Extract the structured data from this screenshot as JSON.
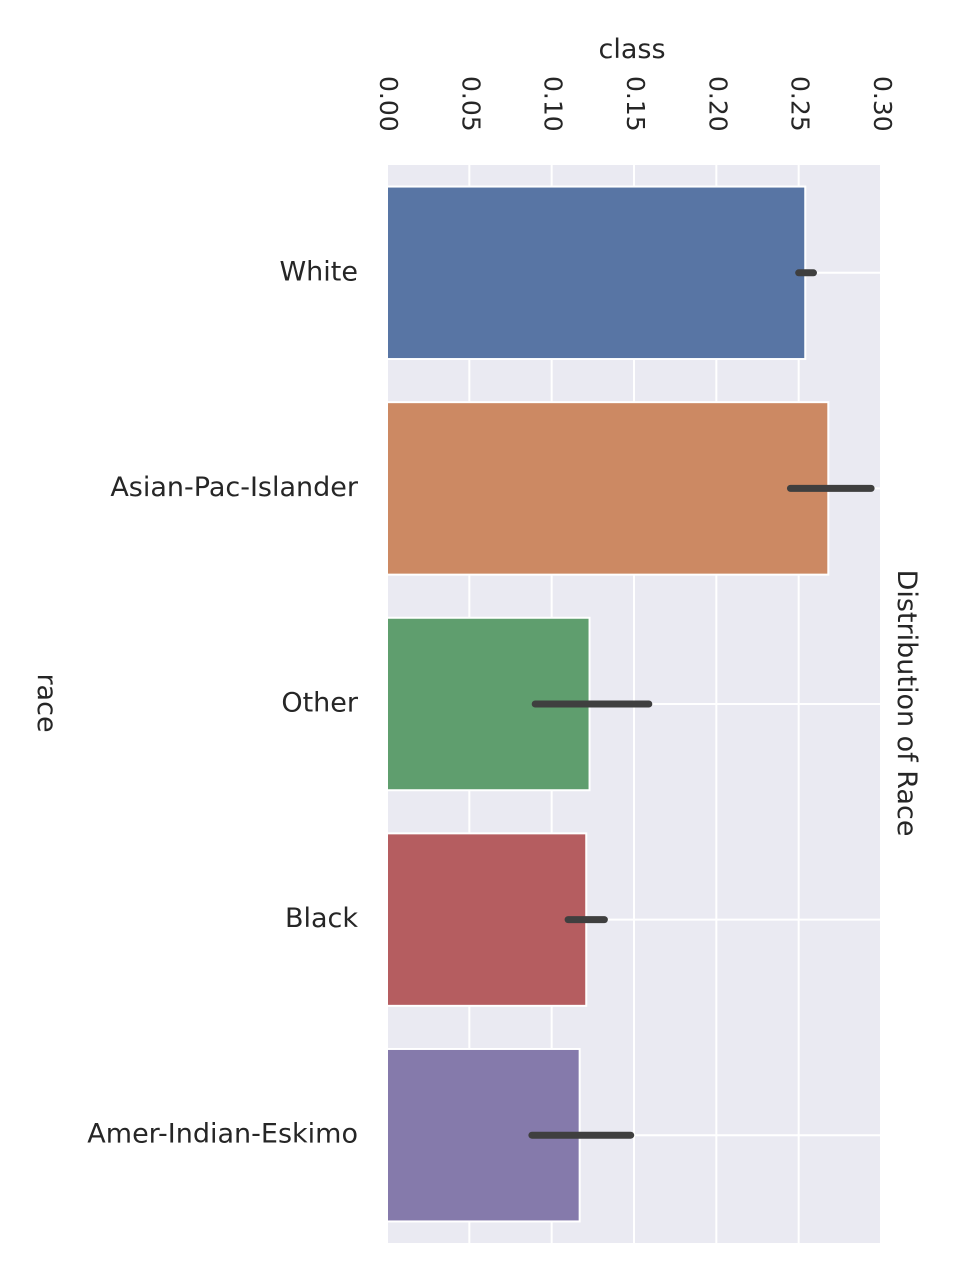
{
  "chart_data": {
    "type": "bar",
    "orientation": "horizontal",
    "title": "Distribution of Race",
    "xlabel": "class",
    "ylabel": "race",
    "xlim": [
      0,
      0.3
    ],
    "x_ticks": [
      0.0,
      0.05,
      0.1,
      0.15,
      0.2,
      0.25,
      0.3
    ],
    "x_tick_labels": [
      "0.00",
      "0.05",
      "0.10",
      "0.15",
      "0.20",
      "0.25",
      "0.30"
    ],
    "categories": [
      "White",
      "Asian-Pac-Islander",
      "Other",
      "Black",
      "Amer-Indian-Eskimo"
    ],
    "values": [
      0.254,
      0.268,
      0.123,
      0.121,
      0.117
    ],
    "error_low": [
      0.25,
      0.245,
      0.09,
      0.11,
      0.088
    ],
    "error_high": [
      0.259,
      0.294,
      0.159,
      0.132,
      0.148
    ],
    "colors": [
      "#5875a4",
      "#cc8963",
      "#5f9e6e",
      "#b55d60",
      "#857aab"
    ],
    "error_color": "#3f3f3f",
    "background_color": "#eaeaf2",
    "grid_color": "#ffffff",
    "grid": true,
    "rotation": "90deg-clockwise"
  }
}
